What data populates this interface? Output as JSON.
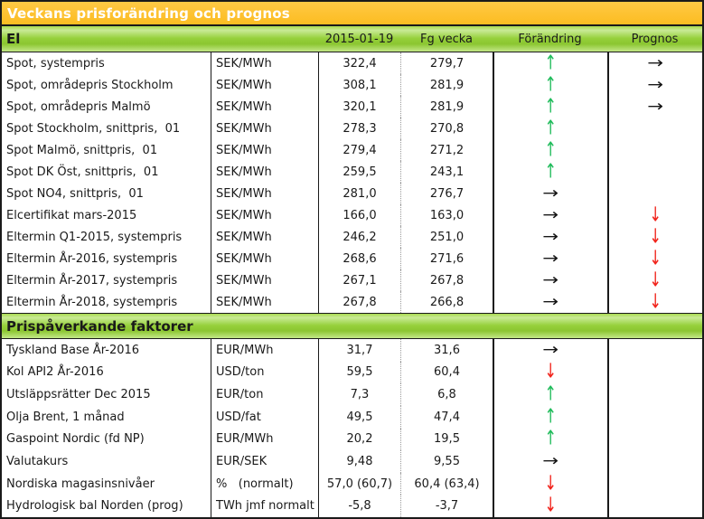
{
  "title": "Veckans prisforändring och prognos",
  "colors": {
    "header_orange": "#fdc231",
    "band_green": "#8bc631",
    "arrow_up_green": "#1fbb5a",
    "arrow_down_red": "#f1231b",
    "arrow_right_black": "#161616"
  },
  "icons": {
    "up": "↑",
    "down": "↓",
    "right": "→"
  },
  "sections": [
    {
      "header": "El",
      "col_headers": [
        "2015-01-19",
        "Fg vecka",
        "Förändring",
        "Prognos"
      ],
      "rows": [
        {
          "label": "Spot, systempris",
          "unit": "SEK/MWh",
          "current": "322,4",
          "prev": "279,7",
          "change": "up",
          "forecast": "right"
        },
        {
          "label": "Spot, områdepris Stockholm",
          "unit": "SEK/MWh",
          "current": "308,1",
          "prev": "281,9",
          "change": "up",
          "forecast": "right"
        },
        {
          "label": "Spot, områdepris Malmö",
          "unit": "SEK/MWh",
          "current": "320,1",
          "prev": "281,9",
          "change": "up",
          "forecast": "right"
        },
        {
          "label": "Spot Stockholm, snittpris,  01",
          "unit": "SEK/MWh",
          "current": "278,3",
          "prev": "270,8",
          "change": "up",
          "forecast": ""
        },
        {
          "label": "Spot Malmö, snittpris,  01",
          "unit": "SEK/MWh",
          "current": "279,4",
          "prev": "271,2",
          "change": "up",
          "forecast": ""
        },
        {
          "label": "Spot DK Öst, snittpris,  01",
          "unit": "SEK/MWh",
          "current": "259,5",
          "prev": "243,1",
          "change": "up",
          "forecast": ""
        },
        {
          "label": "Spot NO4, snittpris,  01",
          "unit": "SEK/MWh",
          "current": "281,0",
          "prev": "276,7",
          "change": "right",
          "forecast": ""
        },
        {
          "label": "Elcertifikat mars-2015",
          "unit": "SEK/MWh",
          "current": "166,0",
          "prev": "163,0",
          "change": "right",
          "forecast": "down"
        },
        {
          "label": "Eltermin Q1-2015, systempris",
          "unit": "SEK/MWh",
          "current": "246,2",
          "prev": "251,0",
          "change": "right",
          "forecast": "down"
        },
        {
          "label": "Eltermin År-2016, systempris",
          "unit": "SEK/MWh",
          "current": "268,6",
          "prev": "271,6",
          "change": "right",
          "forecast": "down"
        },
        {
          "label": "Eltermin År-2017, systempris",
          "unit": "SEK/MWh",
          "current": "267,1",
          "prev": "267,8",
          "change": "right",
          "forecast": "down"
        },
        {
          "label": "Eltermin År-2018, systempris",
          "unit": "SEK/MWh",
          "current": "267,8",
          "prev": "266,8",
          "change": "right",
          "forecast": "down"
        }
      ]
    },
    {
      "header": "Prispåverkande faktorer",
      "rows": [
        {
          "label": "Tyskland Base År-2016",
          "unit": "EUR/MWh",
          "current": "31,7",
          "prev": "31,6",
          "change": "right",
          "forecast": ""
        },
        {
          "label": "Kol API2 År-2016",
          "unit": "USD/ton",
          "current": "59,5",
          "prev": "60,4",
          "change": "down",
          "forecast": ""
        },
        {
          "label": "Utsläppsrätter Dec 2015",
          "unit": "EUR/ton",
          "current": "7,3",
          "prev": "6,8",
          "change": "up",
          "forecast": ""
        },
        {
          "label": "Olja Brent, 1 månad",
          "unit": "USD/fat",
          "current": "49,5",
          "prev": "47,4",
          "change": "up",
          "forecast": ""
        },
        {
          "label": "Gaspoint Nordic (fd NP)",
          "unit": "EUR/MWh",
          "current": "20,2",
          "prev": "19,5",
          "change": "up",
          "forecast": ""
        },
        {
          "label": "Valutakurs",
          "unit": "EUR/SEK",
          "current": "9,48",
          "prev": "9,55",
          "change": "right",
          "forecast": ""
        },
        {
          "label": "Nordiska magasinsnivåer",
          "unit": "%   (normalt)",
          "current": "57,0 (60,7)",
          "prev": "60,4 (63,4)",
          "change": "down",
          "forecast": ""
        },
        {
          "label": "Hydrologisk bal Norden (prog)",
          "unit": "TWh jmf normalt",
          "current": "-5,8",
          "prev": "-3,7",
          "change": "down",
          "forecast": ""
        }
      ]
    }
  ]
}
